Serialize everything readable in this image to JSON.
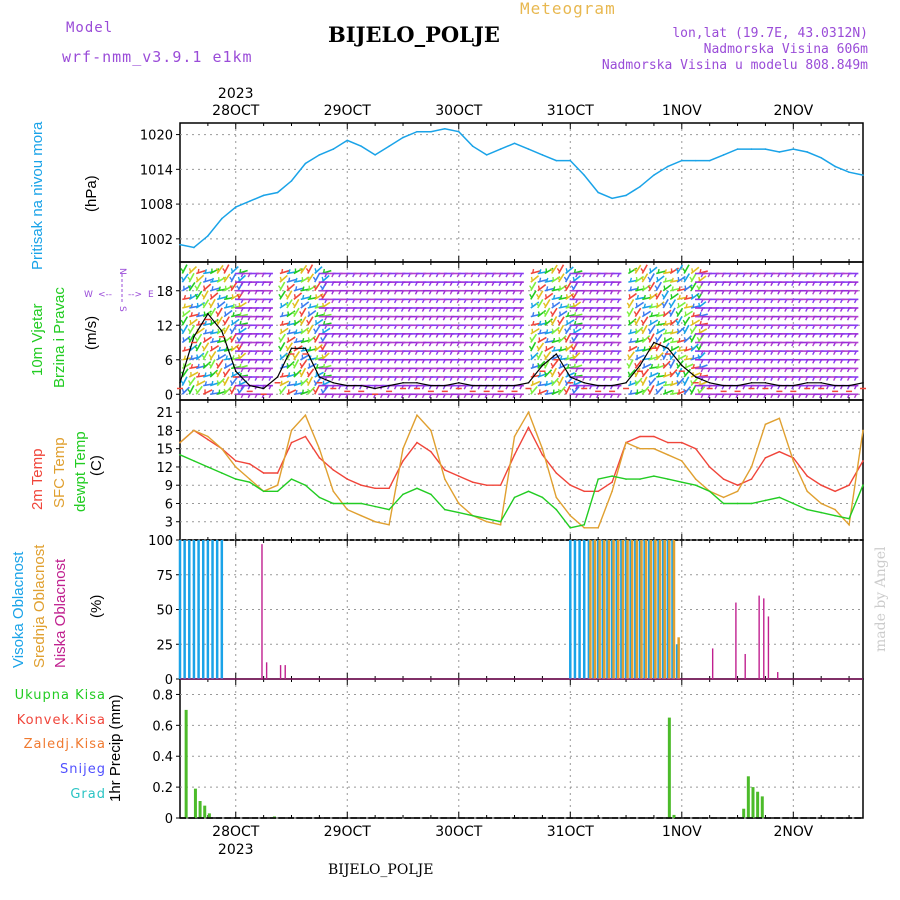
{
  "header": {
    "model_label": "Model",
    "model_name": "wrf-nmm_v3.9.1 e1km",
    "chart_title": "Meteogram",
    "station": "BIJELO_POLJE",
    "lonlat": "lon,lat (19.7E, 43.0312N)",
    "altitude": "Nadmorska Visina 606m",
    "model_altitude": "Nadmorska Visina u modelu 808.849m",
    "footer_station": "BIJELO_POLJE",
    "credit": "made by Angel"
  },
  "time_axis": {
    "year": "2023",
    "ticks": [
      "28OCT",
      "29OCT",
      "30OCT",
      "31OCT",
      "1NOV",
      "2NOV"
    ],
    "tick_hours": [
      12,
      36,
      60,
      84,
      108,
      132
    ],
    "range_hours": [
      0,
      147
    ]
  },
  "colors": {
    "pressure": "#1aa3e8",
    "temp2m": "#f0453a",
    "sfc": "#e0a030",
    "dewpt": "#22cc22",
    "high": "#1aa3e8",
    "mid": "#e0a030",
    "low": "#c0208f",
    "precip": "#4cbb2a",
    "conv": "#f0453a",
    "frz": "#f07a30",
    "snow": "#5050ff",
    "grad": "#2ac4c4",
    "purple": "#9a4cd8"
  },
  "panels": {
    "pressure": {
      "label": "Pritisak na nivou mora",
      "unit": "(hPa)"
    },
    "wind": {
      "label_a": "10m Vjetar",
      "label_b": "Brzina i Pravac",
      "unit": "(m/s)",
      "compass_n": "N",
      "compass_w": "W",
      "compass_e": "E",
      "compass_s": "S"
    },
    "temp": {
      "label_a": "2m Temp",
      "label_b": "SFC Temp",
      "label_c": "dewpt Temp",
      "unit": "(C)"
    },
    "cloud": {
      "label_a": "Visoka Oblacnost",
      "label_b": "Srednja Oblacnost",
      "label_c": "Niska Oblacnost",
      "unit": "(%)"
    },
    "precip": {
      "unit": "1hr Precip (mm)",
      "legend": [
        "Ukupna Kisa",
        "Konvek.Kisa",
        "Zaledj.Kisa",
        "Snijeg",
        "Grad"
      ]
    }
  },
  "chart_data": [
    {
      "type": "line",
      "title": "Pritisak na nivou mora",
      "ylabel": "(hPa)",
      "yticks": [
        1002,
        1008,
        1014,
        1020
      ],
      "ylim": [
        998,
        1022
      ],
      "x": [
        0,
        3,
        6,
        9,
        12,
        15,
        18,
        21,
        24,
        27,
        30,
        33,
        36,
        39,
        42,
        45,
        48,
        51,
        54,
        57,
        60,
        63,
        66,
        69,
        72,
        75,
        78,
        81,
        84,
        87,
        90,
        93,
        96,
        99,
        102,
        105,
        108,
        111,
        114,
        117,
        120,
        123,
        126,
        129,
        132,
        135,
        138,
        141,
        144,
        147
      ],
      "series": [
        {
          "name": "Pritisak na nivou mora",
          "values": [
            1001,
            1000.5,
            1002.5,
            1005.5,
            1007.5,
            1008.5,
            1009.5,
            1010,
            1012,
            1015,
            1016.5,
            1017.5,
            1019,
            1018,
            1016.5,
            1018,
            1019.5,
            1020.5,
            1020.5,
            1021,
            1020.5,
            1018,
            1016.5,
            1017.5,
            1018.5,
            1017.5,
            1016.5,
            1015.5,
            1015.5,
            1013,
            1010,
            1009,
            1009.5,
            1011,
            1013,
            1014.5,
            1015.5,
            1015.5,
            1015.5,
            1016.5,
            1017.5,
            1017.5,
            1017.5,
            1017,
            1017.5,
            1017,
            1016,
            1014.5,
            1013.5,
            1013
          ]
        }
      ]
    },
    {
      "type": "line",
      "title": "10m Vjetar Brzina i Pravac",
      "ylabel": "(m/s)",
      "yticks": [
        0,
        6,
        12,
        18
      ],
      "ylim": [
        -1,
        23
      ],
      "x": [
        0,
        3,
        6,
        9,
        12,
        15,
        18,
        21,
        24,
        27,
        30,
        33,
        36,
        39,
        42,
        45,
        48,
        51,
        54,
        57,
        60,
        63,
        66,
        69,
        72,
        75,
        78,
        81,
        84,
        87,
        90,
        93,
        96,
        99,
        102,
        105,
        108,
        111,
        114,
        117,
        120,
        123,
        126,
        129,
        132,
        135,
        138,
        141,
        144,
        147
      ],
      "series": [
        {
          "name": "10m Vjetar",
          "values": [
            2,
            10,
            14,
            11,
            4,
            1.5,
            1,
            3,
            8,
            8,
            3,
            2,
            1.5,
            1.5,
            1,
            1.5,
            2,
            2,
            1.5,
            1.5,
            2,
            1.5,
            1.5,
            1.5,
            1.5,
            2,
            5,
            7,
            3,
            2,
            1.5,
            1.5,
            2,
            5,
            9,
            8,
            5,
            3,
            2,
            1.5,
            1.5,
            2,
            2,
            1.5,
            1.5,
            2,
            2,
            1.5,
            1.5,
            2
          ]
        }
      ]
    },
    {
      "type": "line",
      "title": "2m Temp / SFC Temp / dewpt Temp",
      "ylabel": "(C)",
      "yticks": [
        0,
        3,
        6,
        9,
        12,
        15,
        18,
        21
      ],
      "ylim": [
        0,
        23
      ],
      "x": [
        0,
        3,
        6,
        9,
        12,
        15,
        18,
        21,
        24,
        27,
        30,
        33,
        36,
        39,
        42,
        45,
        48,
        51,
        54,
        57,
        60,
        63,
        66,
        69,
        72,
        75,
        78,
        81,
        84,
        87,
        90,
        93,
        96,
        99,
        102,
        105,
        108,
        111,
        114,
        117,
        120,
        123,
        126,
        129,
        132,
        135,
        138,
        141,
        144,
        147
      ],
      "series": [
        {
          "name": "2m Temp",
          "values": [
            16,
            18,
            16.5,
            15,
            13,
            12.5,
            11,
            11,
            16,
            17,
            13.5,
            11.5,
            10,
            9,
            8.5,
            8.5,
            13,
            16,
            14.5,
            11.5,
            10.5,
            9.5,
            9,
            9,
            14,
            18.5,
            14,
            11,
            9,
            8,
            8,
            9.5,
            16,
            17,
            17,
            16,
            16,
            15,
            12,
            10,
            9,
            10,
            13.5,
            14.5,
            13.5,
            10.5,
            9,
            8,
            9,
            13
          ]
        },
        {
          "name": "SFC Temp",
          "values": [
            16,
            18,
            17,
            15,
            12,
            10,
            8,
            9,
            18,
            20.5,
            15,
            8,
            5,
            4,
            3,
            2.5,
            15,
            20.5,
            18,
            10,
            6,
            4,
            3,
            2.5,
            17,
            21,
            15,
            7,
            4,
            2,
            2,
            8,
            16,
            15,
            15,
            14,
            13,
            10,
            8,
            7,
            8,
            12,
            19,
            20,
            13,
            8,
            6,
            5,
            2.5,
            18
          ]
        },
        {
          "name": "dewpt Temp",
          "values": [
            14,
            13,
            12,
            11,
            10,
            9.5,
            8,
            8,
            10,
            9,
            7,
            6,
            6,
            6,
            5.5,
            5,
            7.5,
            8.5,
            7.5,
            5,
            4.5,
            4,
            3.5,
            3,
            7,
            8,
            7,
            5,
            2,
            2.5,
            10,
            10.5,
            10,
            10,
            10.5,
            10,
            9.5,
            9,
            8,
            6,
            6,
            6,
            6.5,
            7,
            6,
            5,
            4.5,
            4,
            3.5,
            9
          ]
        }
      ]
    },
    {
      "type": "bar",
      "title": "Visoka / Srednja / Niska Oblacnost",
      "ylabel": "(%)",
      "yticks": [
        0,
        25,
        50,
        75,
        100
      ],
      "ylim": [
        0,
        100
      ],
      "series": [
        {
          "name": "Visoka Oblacnost",
          "x": [
            0,
            1,
            2,
            3,
            4,
            5,
            6,
            7,
            8,
            9,
            84,
            85,
            86,
            87,
            88,
            89,
            90,
            91,
            92,
            93,
            94,
            95,
            96,
            97,
            98,
            99,
            100,
            101,
            102,
            103,
            104,
            105,
            106,
            107
          ],
          "values": [
            100,
            100,
            100,
            100,
            100,
            100,
            100,
            100,
            100,
            100,
            100,
            100,
            100,
            100,
            100,
            100,
            100,
            100,
            100,
            100,
            100,
            100,
            100,
            100,
            100,
            100,
            100,
            100,
            100,
            100,
            100,
            100,
            100,
            25
          ]
        },
        {
          "name": "Srednja Oblacnost",
          "x": [
            88,
            89,
            90,
            91,
            92,
            93,
            94,
            95,
            96,
            97,
            98,
            99,
            100,
            101,
            102,
            103,
            104,
            105,
            106,
            107
          ],
          "values": [
            100,
            100,
            100,
            100,
            100,
            100,
            100,
            100,
            100,
            100,
            100,
            100,
            100,
            100,
            100,
            100,
            100,
            100,
            100,
            30
          ]
        },
        {
          "name": "Niska Oblacnost",
          "x": [
            17,
            18,
            21,
            22,
            114,
            119,
            121,
            124,
            125,
            126,
            128
          ],
          "values": [
            97,
            12,
            10,
            10,
            22,
            55,
            18,
            60,
            58,
            45,
            5
          ]
        }
      ]
    },
    {
      "type": "bar",
      "title": "1hr Precip",
      "ylabel": "1hr Precip (mm)",
      "yticks": [
        0,
        0.2,
        0.4,
        0.6,
        0.8
      ],
      "ylim": [
        0,
        0.9
      ],
      "series": [
        {
          "name": "Ukupna Kisa",
          "x": [
            1,
            3,
            4,
            5,
            6,
            20,
            105,
            106,
            121,
            122,
            123,
            124,
            125
          ],
          "values": [
            0.7,
            0.19,
            0.11,
            0.08,
            0.03,
            0.01,
            0.65,
            0.02,
            0.06,
            0.27,
            0.2,
            0.17,
            0.14
          ]
        }
      ]
    }
  ]
}
